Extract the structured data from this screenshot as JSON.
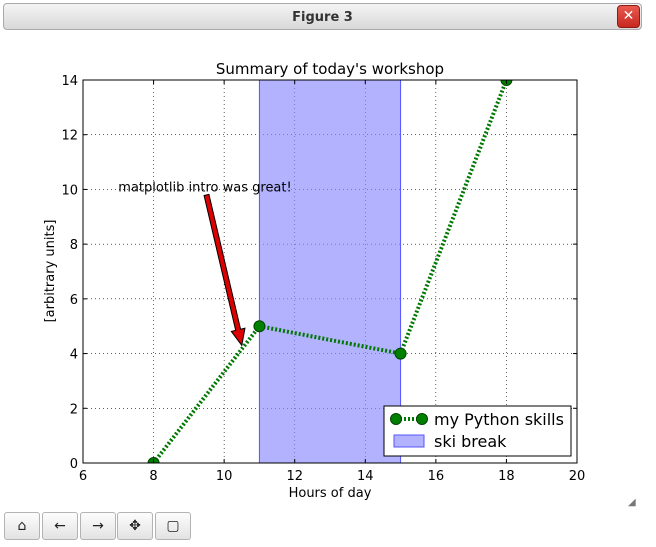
{
  "window": {
    "title": "Figure 3",
    "close_glyph": "✕"
  },
  "toolbar": {
    "buttons": [
      {
        "name": "home-button",
        "icon": "home-icon",
        "glyph": "⌂"
      },
      {
        "name": "back-button",
        "icon": "arrow-left-icon",
        "glyph": "←"
      },
      {
        "name": "forward-button",
        "icon": "arrow-right-icon",
        "glyph": "→"
      },
      {
        "name": "pan-button",
        "icon": "move-icon",
        "glyph": "✥"
      },
      {
        "name": "zoom-button",
        "icon": "zoom-rect-icon",
        "glyph": "▢"
      }
    ]
  },
  "chart_data": {
    "type": "line",
    "title": "Summary of today's workshop",
    "xlabel": "Hours of day",
    "ylabel": "[arbitrary units]",
    "xlim": [
      6,
      20
    ],
    "ylim": [
      0,
      14
    ],
    "xticks": [
      6,
      8,
      10,
      12,
      14,
      16,
      18,
      20
    ],
    "yticks": [
      0,
      2,
      4,
      6,
      8,
      10,
      12,
      14
    ],
    "grid": true,
    "legend_position": "lower-right",
    "series": [
      {
        "name": "my Python skills",
        "color": "#007700",
        "line_style": "dotted",
        "marker": "circle",
        "x": [
          8,
          11,
          15,
          18
        ],
        "y": [
          0,
          5,
          4,
          14
        ]
      }
    ],
    "spans": [
      {
        "name": "ski break",
        "x0": 11,
        "x1": 15,
        "color": "#8888ff"
      }
    ],
    "annotations": [
      {
        "text": "matplotlib intro was great!",
        "text_xy": [
          7,
          10
        ],
        "arrow_xy": [
          10.5,
          4.3
        ],
        "arrow_from": [
          9.5,
          9.8
        ],
        "arrow_color": "#dd0000"
      }
    ]
  }
}
